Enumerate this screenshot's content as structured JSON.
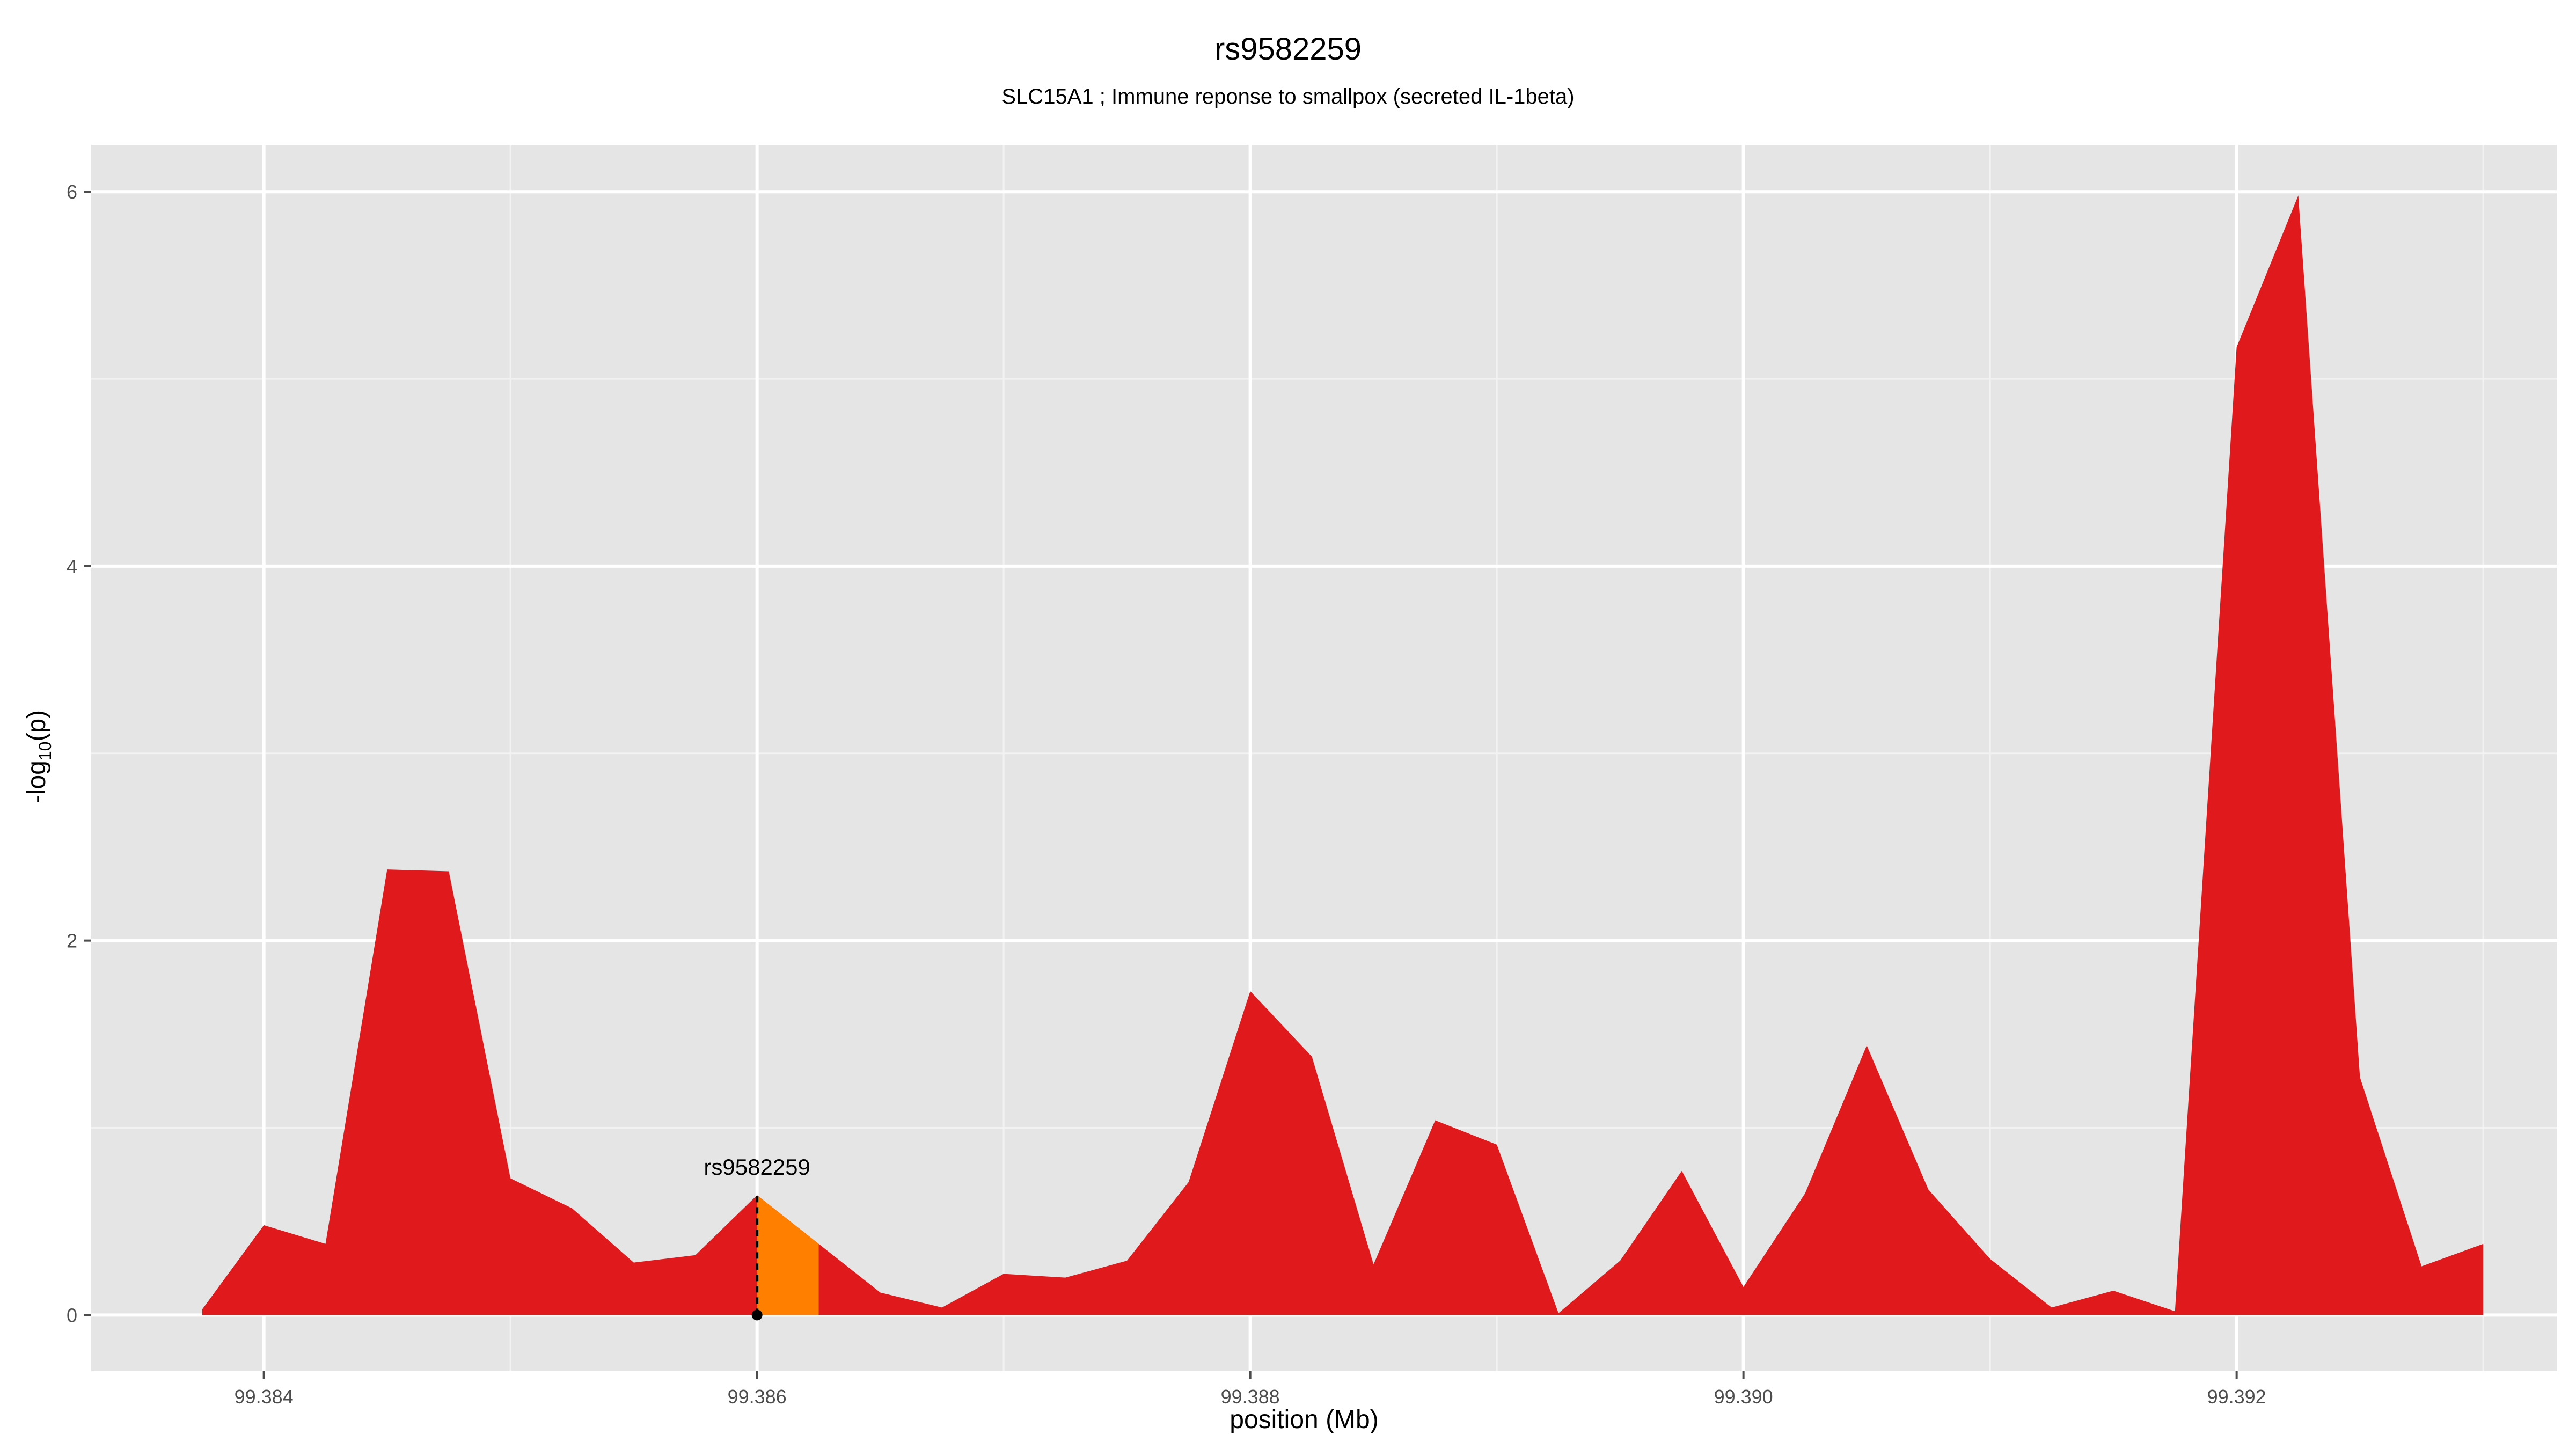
{
  "chart_data": {
    "type": "area",
    "title": "rs9582259",
    "subtitle": "SLC15A1 ; Immune reponse to smallpox (secreted IL-1beta)",
    "xlabel": "position (Mb)",
    "ylabel": "-log10(p)",
    "xlim": [
      99.3833,
      99.3933
    ],
    "ylim": [
      -0.3,
      6.25
    ],
    "x_ticks": [
      99.384,
      99.386,
      99.388,
      99.39,
      99.392
    ],
    "x_tick_labels": [
      "99.384",
      "99.386",
      "99.388",
      "99.390",
      "99.392"
    ],
    "y_ticks": [
      0,
      2,
      4,
      6
    ],
    "y_tick_labels": [
      "0",
      "2",
      "4",
      "6"
    ],
    "grid": true,
    "series": [
      {
        "x": [
          99.38375,
          99.384,
          99.38425,
          99.3845,
          99.38475,
          99.385,
          99.38525,
          99.3855,
          99.38575,
          99.386,
          99.38625,
          99.3865,
          99.38675,
          99.387,
          99.38725,
          99.3875,
          99.38775,
          99.388,
          99.38825,
          99.3885,
          99.38875,
          99.389,
          99.38925,
          99.3895,
          99.38975,
          99.39,
          99.39025,
          99.3905,
          99.39075,
          99.391,
          99.39125,
          99.3915,
          99.39175,
          99.392,
          99.39225,
          99.3925,
          99.39275,
          99.393
        ],
        "y": [
          0.03,
          0.48,
          0.38,
          2.38,
          2.37,
          0.73,
          0.57,
          0.28,
          0.32,
          0.64,
          0.38,
          0.12,
          0.04,
          0.22,
          0.2,
          0.29,
          0.71,
          1.73,
          1.38,
          0.27,
          1.04,
          0.91,
          0.01,
          0.29,
          0.77,
          0.15,
          0.65,
          1.44,
          0.67,
          0.3,
          0.04,
          0.13,
          0.02,
          5.17,
          5.98,
          1.27,
          0.26,
          0.38
        ],
        "color": "#e0191c"
      }
    ],
    "highlight": {
      "label": "rs9582259",
      "x": 99.386,
      "y": 0.64,
      "region": [
        99.386,
        99.38625
      ],
      "color": "#ff7f00"
    },
    "colors": {
      "panel_background": "#e5e5e5",
      "grid_major": "#ffffff",
      "area_fill": "#e0191c",
      "highlight_fill": "#ff7f00"
    }
  }
}
